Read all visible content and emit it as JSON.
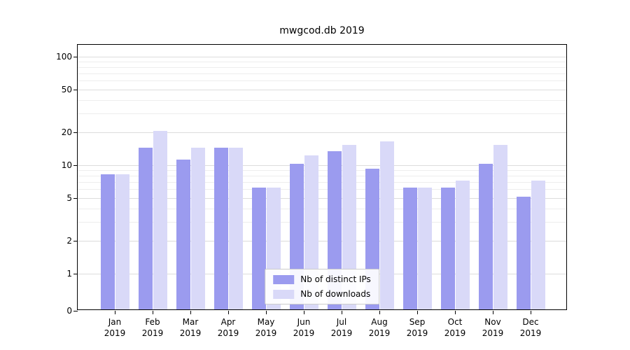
{
  "title": "mwgcod.db 2019",
  "chart_data": {
    "type": "bar",
    "title": "mwgcod.db 2019",
    "categories": [
      "Jan",
      "Feb",
      "Mar",
      "Apr",
      "May",
      "Jun",
      "Jul",
      "Aug",
      "Sep",
      "Oct",
      "Nov",
      "Dec"
    ],
    "year": "2019",
    "series": [
      {
        "name": "Nb of distinct IPs",
        "color": "#9b9bef",
        "values": [
          8,
          14,
          11,
          14,
          6,
          10,
          13,
          9,
          6,
          6,
          10,
          5
        ]
      },
      {
        "name": "Nb of downloads",
        "color": "#d9d9f8",
        "values": [
          8,
          20,
          14,
          14,
          6,
          12,
          15,
          16,
          6,
          7,
          15,
          7
        ]
      }
    ],
    "yscale": "log",
    "ylim": [
      0,
      100
    ],
    "yticks": [
      0,
      1,
      2,
      5,
      10,
      20,
      50,
      100
    ],
    "minor_yticks": [
      3,
      4,
      6,
      7,
      8,
      9,
      30,
      40,
      60,
      70,
      80,
      90
    ],
    "xlabel": "",
    "ylabel": "",
    "grid": true,
    "legend_position": "lower center"
  }
}
